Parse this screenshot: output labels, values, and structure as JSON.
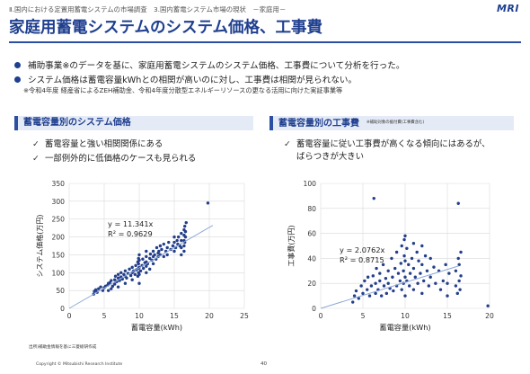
{
  "header": {
    "breadcrumb": "Ⅱ.国内における定置用蓄電システムの市場調査　3.国内蓄電システム市場の現状　－家庭用－",
    "logo": "MRI",
    "title": "家庭用蓄電システムのシステム価格、工事費"
  },
  "bullets": [
    "補助事業※のデータを基に、家庭用蓄電システムのシステム価格、工事費について分析を行った。",
    "システム価格は蓄電容量kWhとの相関が高いのに対し、工事費は相関が見られない。"
  ],
  "note": "※令和4年度 経産省によるZEH補助金、令和4年度分散型エネルギーリソースの更なる活用に向けた実証事業等",
  "left_section": {
    "heading": "蓄電容量別のシステム価格",
    "checks": [
      "蓄電容量と強い相関関係にある",
      "一部例外的に低価格のケースも見られる"
    ]
  },
  "right_section": {
    "heading": "蓄電容量別の工事費",
    "heading_note": "※補助対象の据付費(工事費含む)",
    "checks": [
      "蓄電容量に従い工事費が高くなる傾向にはあるが、",
      "ばらつきが大きい"
    ]
  },
  "check_glyph": "✓",
  "colors": {
    "accent": "#1f3f8f",
    "points": "#243f8a",
    "trend": "#8fa9d8"
  },
  "chart_data": [
    {
      "type": "scatter",
      "xlabel": "蓄電容量(kWh)",
      "ylabel": "システム価格(万円)",
      "xlim": [
        0,
        25
      ],
      "ylim": [
        0,
        350
      ],
      "xticks": [
        0,
        5,
        10,
        15,
        20,
        25
      ],
      "yticks": [
        0,
        50,
        100,
        150,
        200,
        250,
        300,
        350
      ],
      "grid": true,
      "trendline": {
        "slope": 11.341,
        "label1": "y = 11.341x",
        "label2": "R² = 0.9629"
      },
      "points": [
        [
          3.5,
          40
        ],
        [
          3.6,
          48
        ],
        [
          3.8,
          52
        ],
        [
          4.0,
          45
        ],
        [
          4.2,
          55
        ],
        [
          4.5,
          60
        ],
        [
          4.8,
          50
        ],
        [
          5.0,
          58
        ],
        [
          5.2,
          62
        ],
        [
          5.5,
          65
        ],
        [
          5.6,
          50
        ],
        [
          5.6,
          70
        ],
        [
          5.8,
          72
        ],
        [
          6.0,
          55
        ],
        [
          6.0,
          78
        ],
        [
          6.2,
          62
        ],
        [
          6.5,
          68
        ],
        [
          6.5,
          80
        ],
        [
          6.6,
          90
        ],
        [
          6.8,
          75
        ],
        [
          7.0,
          60
        ],
        [
          7.0,
          85
        ],
        [
          7.0,
          95
        ],
        [
          7.2,
          78
        ],
        [
          7.4,
          88
        ],
        [
          7.4,
          100
        ],
        [
          7.6,
          82
        ],
        [
          7.8,
          95
        ],
        [
          8.0,
          70
        ],
        [
          8.0,
          90
        ],
        [
          8.0,
          105
        ],
        [
          8.2,
          85
        ],
        [
          8.4,
          98
        ],
        [
          8.6,
          110
        ],
        [
          8.8,
          92
        ],
        [
          9.0,
          80
        ],
        [
          9.0,
          100
        ],
        [
          9.0,
          115
        ],
        [
          9.2,
          105
        ],
        [
          9.4,
          95
        ],
        [
          9.5,
          120
        ],
        [
          9.6,
          108
        ],
        [
          9.8,
          90
        ],
        [
          9.8,
          130
        ],
        [
          9.9,
          100
        ],
        [
          9.9,
          112
        ],
        [
          9.9,
          125
        ],
        [
          9.9,
          140
        ],
        [
          10.0,
          70
        ],
        [
          10.0,
          95
        ],
        [
          10.0,
          115
        ],
        [
          10.0,
          135
        ],
        [
          10.0,
          150
        ],
        [
          10.2,
          105
        ],
        [
          10.4,
          120
        ],
        [
          10.5,
          138
        ],
        [
          10.6,
          112
        ],
        [
          10.8,
          128
        ],
        [
          11.0,
          100
        ],
        [
          11.0,
          118
        ],
        [
          11.0,
          130
        ],
        [
          11.0,
          145
        ],
        [
          11.0,
          160
        ],
        [
          11.2,
          125
        ],
        [
          11.5,
          140
        ],
        [
          11.5,
          110
        ],
        [
          11.6,
          152
        ],
        [
          11.8,
          135
        ],
        [
          12.0,
          145
        ],
        [
          12.0,
          160
        ],
        [
          12.0,
          125
        ],
        [
          12.2,
          150
        ],
        [
          12.4,
          138
        ],
        [
          12.5,
          170
        ],
        [
          12.7,
          155
        ],
        [
          12.7,
          145
        ],
        [
          12.8,
          160
        ],
        [
          13.0,
          150
        ],
        [
          13.0,
          175
        ],
        [
          13.2,
          165
        ],
        [
          13.5,
          145
        ],
        [
          13.5,
          180
        ],
        [
          13.8,
          160
        ],
        [
          14.0,
          150
        ],
        [
          14.0,
          170
        ],
        [
          14.2,
          185
        ],
        [
          14.5,
          165
        ],
        [
          14.8,
          175
        ],
        [
          15.0,
          160
        ],
        [
          15.0,
          185
        ],
        [
          15.0,
          200
        ],
        [
          15.2,
          170
        ],
        [
          15.4,
          190
        ],
        [
          15.5,
          180
        ],
        [
          15.6,
          200
        ],
        [
          15.8,
          175
        ],
        [
          16.0,
          150
        ],
        [
          16.0,
          170
        ],
        [
          16.0,
          190
        ],
        [
          16.0,
          210
        ],
        [
          16.4,
          160
        ],
        [
          16.4,
          175
        ],
        [
          16.4,
          190
        ],
        [
          16.4,
          205
        ],
        [
          16.4,
          220
        ],
        [
          16.5,
          230
        ],
        [
          16.5,
          185
        ],
        [
          16.6,
          200
        ],
        [
          16.6,
          215
        ],
        [
          16.7,
          240
        ],
        [
          19.8,
          295
        ]
      ]
    },
    {
      "type": "scatter",
      "xlabel": "蓄電容量(kWh)",
      "ylabel": "工事費(万円)",
      "xlim": [
        0,
        20
      ],
      "ylim": [
        0,
        100
      ],
      "xticks": [
        0,
        5,
        10,
        15,
        20
      ],
      "yticks": [
        0,
        20,
        40,
        60,
        80,
        100
      ],
      "grid": true,
      "trendline": {
        "slope": 2.0762,
        "label1": "y = 2.0762x",
        "label2": "R² = 0.8715"
      },
      "points": [
        [
          3.8,
          5
        ],
        [
          4.0,
          10
        ],
        [
          4.2,
          14
        ],
        [
          4.5,
          8
        ],
        [
          4.8,
          18
        ],
        [
          5.0,
          12
        ],
        [
          5.2,
          22
        ],
        [
          5.5,
          15
        ],
        [
          5.6,
          25
        ],
        [
          5.8,
          10
        ],
        [
          6.0,
          18
        ],
        [
          6.2,
          26
        ],
        [
          6.3,
          88
        ],
        [
          6.5,
          12
        ],
        [
          6.5,
          20
        ],
        [
          6.6,
          32
        ],
        [
          6.8,
          15
        ],
        [
          7.0,
          22
        ],
        [
          7.0,
          28
        ],
        [
          7.2,
          10
        ],
        [
          7.4,
          35
        ],
        [
          7.5,
          18
        ],
        [
          7.7,
          24
        ],
        [
          7.8,
          12
        ],
        [
          8.0,
          30
        ],
        [
          8.0,
          20
        ],
        [
          8.2,
          16
        ],
        [
          8.4,
          40
        ],
        [
          8.5,
          25
        ],
        [
          8.6,
          14
        ],
        [
          8.8,
          32
        ],
        [
          9.0,
          18
        ],
        [
          9.0,
          45
        ],
        [
          9.2,
          28
        ],
        [
          9.4,
          22
        ],
        [
          9.5,
          36
        ],
        [
          9.6,
          15
        ],
        [
          9.6,
          50
        ],
        [
          9.8,
          30
        ],
        [
          9.8,
          20
        ],
        [
          9.9,
          42
        ],
        [
          9.9,
          55
        ],
        [
          10.0,
          10
        ],
        [
          10.0,
          25
        ],
        [
          10.0,
          38
        ],
        [
          10.0,
          58
        ],
        [
          10.2,
          22
        ],
        [
          10.2,
          48
        ],
        [
          10.4,
          35
        ],
        [
          10.5,
          18
        ],
        [
          10.6,
          28
        ],
        [
          10.8,
          40
        ],
        [
          11.0,
          15
        ],
        [
          11.0,
          32
        ],
        [
          11.0,
          52
        ],
        [
          11.2,
          25
        ],
        [
          11.4,
          45
        ],
        [
          11.5,
          20
        ],
        [
          11.6,
          38
        ],
        [
          11.8,
          28
        ],
        [
          12.0,
          12
        ],
        [
          12.0,
          35
        ],
        [
          12.0,
          50
        ],
        [
          12.2,
          22
        ],
        [
          12.4,
          42
        ],
        [
          12.6,
          30
        ],
        [
          12.8,
          18
        ],
        [
          13.0,
          40
        ],
        [
          13.0,
          25
        ],
        [
          13.4,
          33
        ],
        [
          13.6,
          20
        ],
        [
          14.0,
          30
        ],
        [
          14.2,
          15
        ],
        [
          14.5,
          22
        ],
        [
          14.8,
          35
        ],
        [
          15.0,
          20
        ],
        [
          15.0,
          10
        ],
        [
          15.2,
          28
        ],
        [
          16.0,
          18
        ],
        [
          16.0,
          30
        ],
        [
          16.2,
          12
        ],
        [
          16.3,
          40
        ],
        [
          16.3,
          84
        ],
        [
          16.4,
          22
        ],
        [
          16.4,
          35
        ],
        [
          16.5,
          15
        ],
        [
          16.6,
          26
        ],
        [
          16.6,
          45
        ],
        [
          19.8,
          2
        ]
      ]
    }
  ],
  "footer": {
    "source": "出所)補助金情報を基に三菱総研作成",
    "copyright": "Copyright © Mitsubishi Research Institute",
    "page": "40"
  }
}
